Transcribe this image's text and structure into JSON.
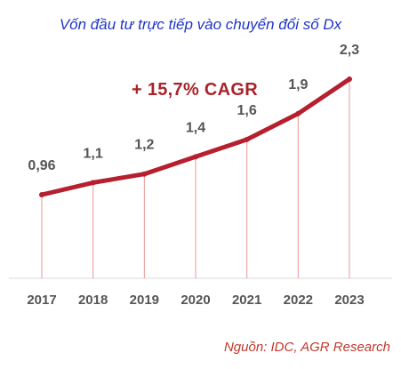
{
  "chart_data": {
    "type": "line",
    "title": "Vốn đầu tư trực tiếp vào chuyển đổi số Dx",
    "annotation": "+ 15,7% CAGR",
    "source": "Nguồn: IDC, AGR Research",
    "categories": [
      "2017",
      "2018",
      "2019",
      "2020",
      "2021",
      "2022",
      "2023"
    ],
    "values": [
      0.96,
      1.1,
      1.2,
      1.4,
      1.6,
      1.9,
      2.3
    ],
    "value_labels": [
      "0,96",
      "1,1",
      "1,2",
      "1,4",
      "1,6",
      "1,9",
      "2,3"
    ],
    "grid": false,
    "colors": {
      "line": "#b51f2e",
      "drop_lines": "#e89898",
      "title": "#1f35c8",
      "source": "#c0392b",
      "annotation": "#a8242b"
    }
  }
}
